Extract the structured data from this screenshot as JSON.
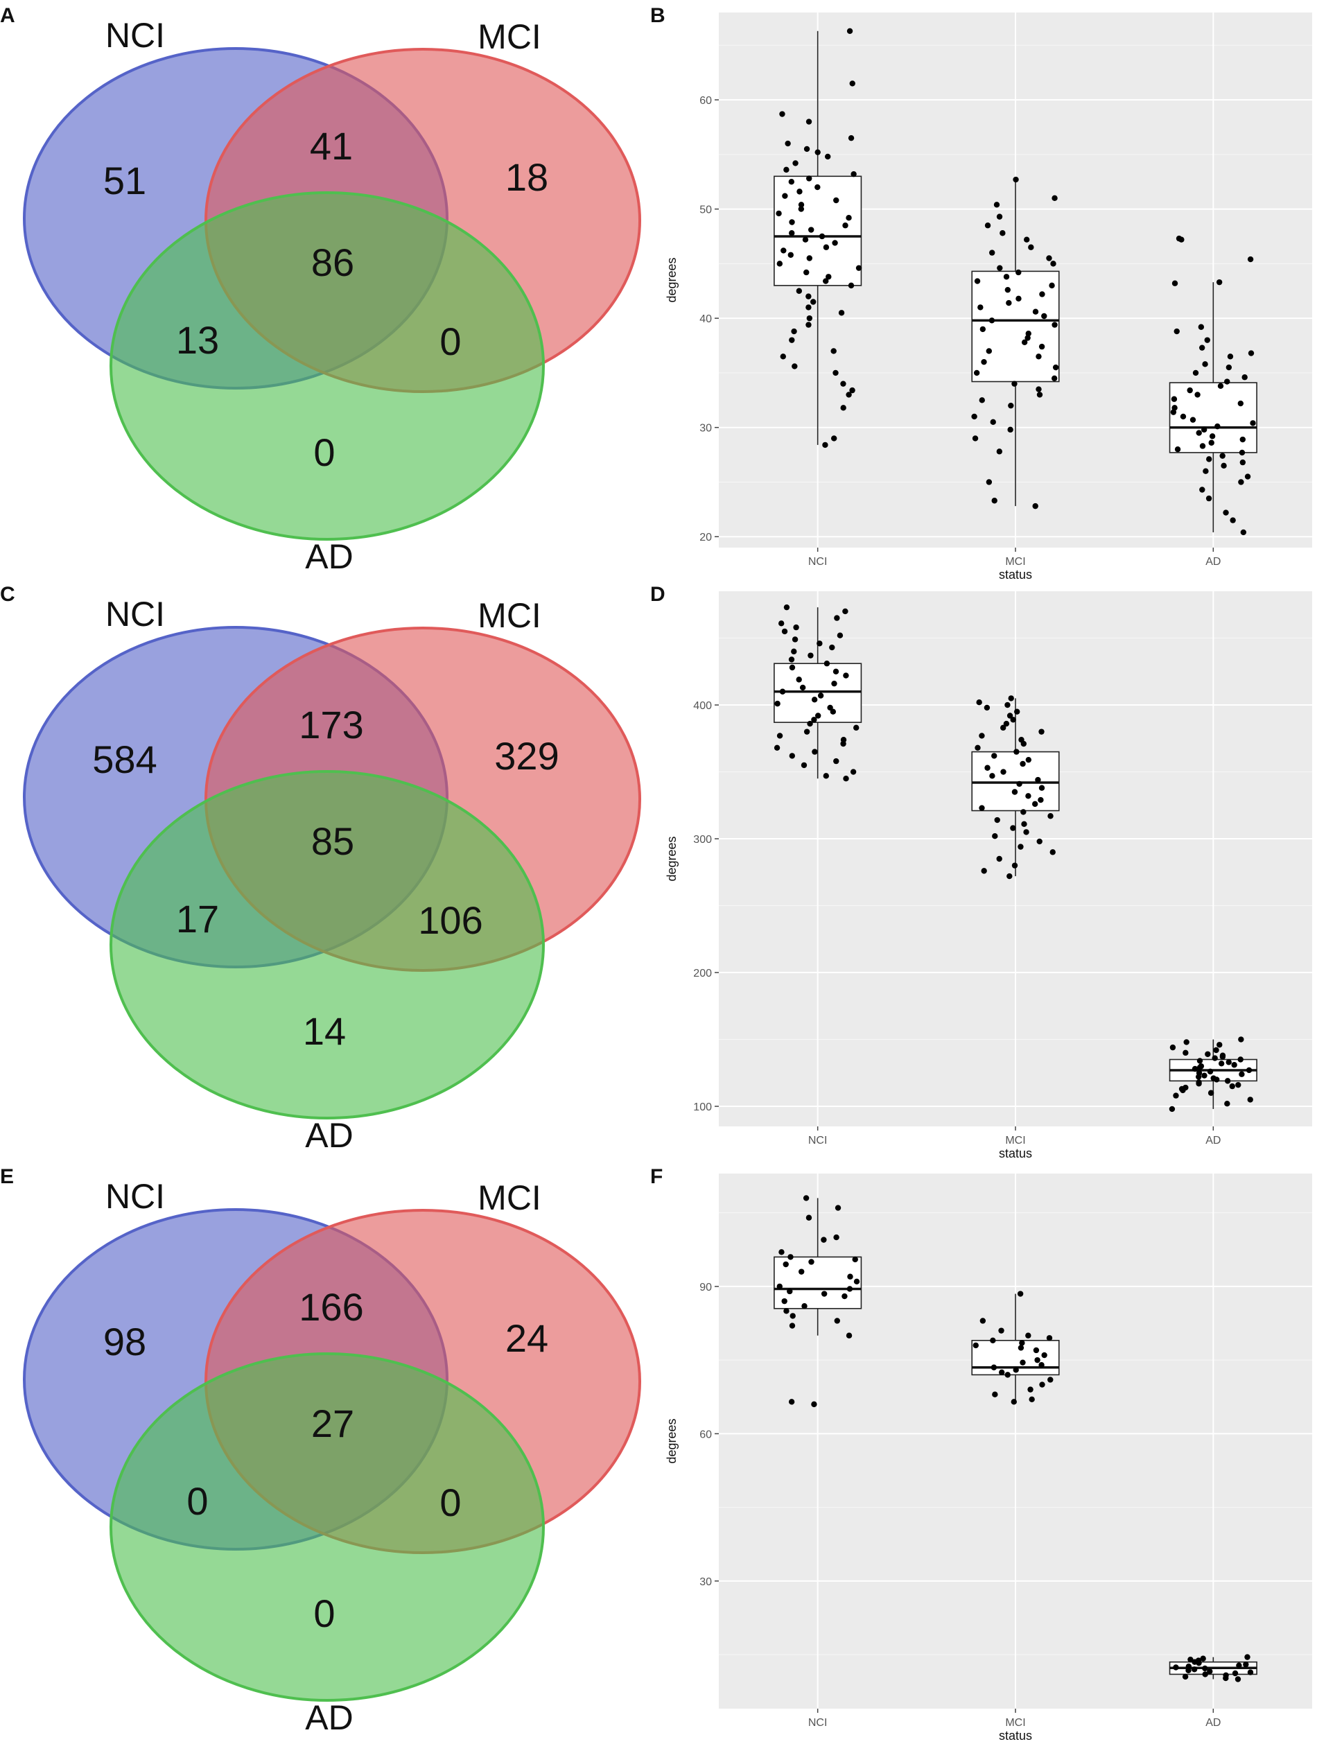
{
  "colors": {
    "nci": "#5563c8",
    "mci": "#e05a5a",
    "ad": "#4fbf4f",
    "panel_bg": "#ebebeb",
    "grid": "#ffffff"
  },
  "chart_data": [
    {
      "panel": "A",
      "type": "venn",
      "sets": [
        "NCI",
        "MCI",
        "AD"
      ],
      "regions": {
        "nci_only": "51",
        "mci_only": "18",
        "nci_mci": "41",
        "all": "86",
        "nci_ad": "13",
        "mci_ad": "0",
        "ad_only": "0"
      }
    },
    {
      "panel": "B",
      "type": "boxplot",
      "xlabel": "status",
      "ylabel": "degrees",
      "categories": [
        "NCI",
        "MCI",
        "AD"
      ],
      "ylim": [
        19,
        68
      ],
      "yticks": [
        20,
        30,
        40,
        50,
        60
      ],
      "boxes": [
        {
          "min": 28.4,
          "q1": 43,
          "median": 47.5,
          "q3": 53,
          "max": 66.3
        },
        {
          "min": 22.8,
          "q1": 34.2,
          "median": 39.8,
          "q3": 44.3,
          "max": 52.7
        },
        {
          "min": 20.4,
          "q1": 27.7,
          "median": 30,
          "q3": 34.1,
          "max": 43.3
        }
      ],
      "points": [
        [
          66.3,
          61.5,
          58.7,
          58,
          56.5,
          56,
          55.5,
          55.2,
          54.8,
          54.2,
          53.6,
          53.2,
          52.8,
          52.5,
          52,
          51.6,
          51.2,
          50.8,
          50.4,
          50,
          49.6,
          49.2,
          48.8,
          48.5,
          48.1,
          47.8,
          47.5,
          47.2,
          46.9,
          46.5,
          46.2,
          45.8,
          45.5,
          45,
          44.6,
          44.2,
          43.8,
          43.4,
          43,
          42.5,
          42,
          41.5,
          41,
          40.5,
          40,
          39.4,
          38.8,
          38,
          37,
          36.5,
          35.6,
          35,
          34,
          33.4,
          33,
          31.8,
          29,
          28.4
        ],
        [
          52.7,
          51,
          50.4,
          49.3,
          48.5,
          47.8,
          47.2,
          46.5,
          46,
          45.5,
          45,
          44.6,
          44.2,
          43.8,
          43.4,
          43,
          42.6,
          42.2,
          41.8,
          41.4,
          41,
          40.6,
          40.2,
          39.8,
          39.4,
          39,
          38.6,
          38.2,
          37.8,
          37.4,
          37,
          36.5,
          36,
          35.5,
          35,
          34.5,
          34,
          33.5,
          33,
          32.5,
          32,
          31,
          30.5,
          29.8,
          29,
          27.8,
          25,
          23.3,
          22.8
        ],
        [
          47.3,
          47.2,
          45.4,
          43.3,
          43.2,
          39.2,
          38.8,
          38,
          37.3,
          36.8,
          36.5,
          35.8,
          35.5,
          35,
          34.6,
          34.2,
          33.8,
          33.4,
          33,
          32.6,
          32.2,
          31.8,
          31.4,
          31,
          30.7,
          30.4,
          30.1,
          29.8,
          29.5,
          29.2,
          28.9,
          28.6,
          28.3,
          28,
          27.7,
          27.4,
          27.1,
          26.8,
          26.5,
          26,
          25.5,
          25,
          24.3,
          23.5,
          22.2,
          21.5,
          20.4
        ]
      ]
    },
    {
      "panel": "C",
      "type": "venn",
      "sets": [
        "NCI",
        "MCI",
        "AD"
      ],
      "regions": {
        "nci_only": "584",
        "mci_only": "329",
        "nci_mci": "173",
        "all": "85",
        "nci_ad": "17",
        "mci_ad": "106",
        "ad_only": "14"
      }
    },
    {
      "panel": "D",
      "type": "boxplot",
      "xlabel": "status",
      "ylabel": "degrees",
      "categories": [
        "NCI",
        "MCI",
        "AD"
      ],
      "ylim": [
        85,
        485
      ],
      "yticks": [
        100,
        200,
        300,
        400
      ],
      "boxes": [
        {
          "min": 345,
          "q1": 387,
          "median": 410,
          "q3": 431,
          "max": 473
        },
        {
          "min": 272,
          "q1": 321,
          "median": 342,
          "q3": 365,
          "max": 405
        },
        {
          "min": 98,
          "q1": 119,
          "median": 127,
          "q3": 135,
          "max": 150
        }
      ],
      "points": [
        [
          473,
          470,
          465,
          461,
          458,
          455,
          452,
          449,
          446,
          443,
          440,
          437,
          434,
          431,
          428,
          425,
          422,
          419,
          416,
          413,
          410,
          407,
          404,
          401,
          398,
          395,
          392,
          389,
          386,
          383,
          380,
          377,
          374,
          371,
          368,
          365,
          362,
          358,
          355,
          350,
          347,
          345
        ],
        [
          405,
          402,
          400,
          398,
          395,
          392,
          389,
          386,
          383,
          380,
          377,
          374,
          371,
          368,
          365,
          362,
          359,
          356,
          353,
          350,
          347,
          344,
          341,
          338,
          335,
          332,
          329,
          326,
          323,
          320,
          317,
          314,
          311,
          308,
          305,
          302,
          298,
          294,
          290,
          285,
          280,
          276,
          272
        ],
        [
          150,
          148,
          146,
          144,
          142,
          140,
          139,
          138,
          137,
          136,
          135,
          134,
          133,
          132,
          131,
          130,
          129,
          128,
          127,
          126,
          125,
          124,
          123,
          122,
          121,
          120,
          119,
          118,
          117,
          116,
          115,
          114,
          113,
          112,
          110,
          108,
          105,
          102,
          98
        ]
      ]
    },
    {
      "panel": "E",
      "type": "venn",
      "sets": [
        "NCI",
        "MCI",
        "AD"
      ],
      "regions": {
        "nci_only": "98",
        "mci_only": "24",
        "nci_mci": "166",
        "all": "27",
        "nci_ad": "0",
        "mci_ad": "0",
        "ad_only": "0"
      }
    },
    {
      "panel": "F",
      "type": "boxplot",
      "xlabel": "status",
      "ylabel": "degrees",
      "categories": [
        "NCI",
        "MCI",
        "AD"
      ],
      "ylim": [
        4,
        113
      ],
      "yticks": [
        30,
        60,
        90
      ],
      "boxes": [
        {
          "min": 80,
          "q1": 85.5,
          "median": 89.5,
          "q3": 96,
          "max": 108
        },
        {
          "min": 66.5,
          "q1": 72,
          "median": 73.5,
          "q3": 79,
          "max": 88.5
        },
        {
          "min": 10,
          "q1": 11,
          "median": 12.3,
          "q3": 13.5,
          "max": 14.5
        }
      ],
      "points": [
        [
          108,
          106,
          104,
          100,
          99.5,
          97,
          96,
          95.5,
          95,
          94.5,
          93,
          92,
          91,
          90,
          89.5,
          89,
          88.5,
          88,
          87,
          86,
          85,
          84,
          83,
          82,
          80,
          66.5,
          66
        ],
        [
          88.5,
          83,
          81,
          80,
          79.5,
          79,
          78.5,
          78,
          77.5,
          77,
          76,
          75,
          74.5,
          74,
          73.5,
          73,
          72.5,
          72,
          71,
          70,
          69,
          68,
          67,
          66.5
        ],
        [
          14.5,
          14.2,
          14,
          13.8,
          13.5,
          13.3,
          13,
          12.8,
          12.6,
          12.4,
          12.2,
          12,
          11.8,
          11.6,
          11.4,
          11.2,
          11,
          10.8,
          10.5,
          10.2,
          10
        ]
      ]
    }
  ]
}
